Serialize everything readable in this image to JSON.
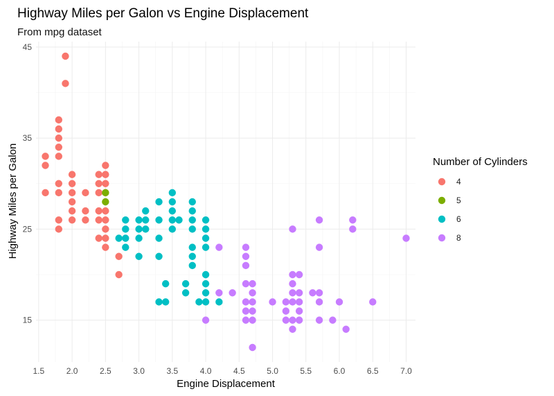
{
  "chart_data": {
    "type": "scatter",
    "title": "Highway Miles per Galon vs Engine Displacement",
    "subtitle": "From mpg dataset",
    "xlabel": "Engine Displacement",
    "ylabel": "Highway Miles per Galon",
    "xlim": [
      1.46,
      7.14
    ],
    "ylim": [
      10.4,
      45.6
    ],
    "x_ticks": [
      "1.5",
      "2.0",
      "2.5",
      "3.0",
      "3.5",
      "4.0",
      "4.5",
      "5.0",
      "5.5",
      "6.0",
      "6.5",
      "7.0"
    ],
    "y_ticks": [
      "15",
      "25",
      "35",
      "45"
    ],
    "grid": true,
    "legend": {
      "title": "Number of Cylinders",
      "position": "right"
    },
    "series": [
      {
        "name": "4",
        "color": "#F8766D",
        "points": [
          [
            1.6,
            33
          ],
          [
            1.6,
            32
          ],
          [
            1.6,
            29
          ],
          [
            1.8,
            37
          ],
          [
            1.8,
            36
          ],
          [
            1.8,
            35
          ],
          [
            1.8,
            34
          ],
          [
            1.8,
            33
          ],
          [
            1.8,
            30
          ],
          [
            1.8,
            29
          ],
          [
            1.8,
            26
          ],
          [
            1.8,
            25
          ],
          [
            1.9,
            44
          ],
          [
            1.9,
            41
          ],
          [
            2.0,
            31
          ],
          [
            2.0,
            30
          ],
          [
            2.0,
            29
          ],
          [
            2.0,
            28
          ],
          [
            2.0,
            27
          ],
          [
            2.0,
            26
          ],
          [
            2.2,
            29
          ],
          [
            2.2,
            27
          ],
          [
            2.2,
            26
          ],
          [
            2.4,
            31
          ],
          [
            2.4,
            30
          ],
          [
            2.4,
            29
          ],
          [
            2.4,
            27
          ],
          [
            2.4,
            26
          ],
          [
            2.4,
            24
          ],
          [
            2.5,
            32
          ],
          [
            2.5,
            31
          ],
          [
            2.5,
            30
          ],
          [
            2.5,
            29
          ],
          [
            2.5,
            27
          ],
          [
            2.5,
            26
          ],
          [
            2.5,
            25
          ],
          [
            2.5,
            24
          ],
          [
            2.5,
            23
          ],
          [
            2.7,
            22
          ],
          [
            2.7,
            20
          ]
        ]
      },
      {
        "name": "5",
        "color": "#7CAE00",
        "points": [
          [
            2.5,
            29
          ],
          [
            2.5,
            28
          ]
        ]
      },
      {
        "name": "6",
        "color": "#00BFC4",
        "points": [
          [
            2.7,
            24
          ],
          [
            2.8,
            26
          ],
          [
            2.8,
            25
          ],
          [
            2.8,
            24
          ],
          [
            2.8,
            23
          ],
          [
            3.0,
            26
          ],
          [
            3.0,
            25
          ],
          [
            3.0,
            24
          ],
          [
            3.0,
            22
          ],
          [
            3.1,
            27
          ],
          [
            3.1,
            26
          ],
          [
            3.1,
            25
          ],
          [
            3.3,
            28
          ],
          [
            3.3,
            26
          ],
          [
            3.3,
            24
          ],
          [
            3.3,
            22
          ],
          [
            3.3,
            17
          ],
          [
            3.4,
            19
          ],
          [
            3.4,
            17
          ],
          [
            3.5,
            29
          ],
          [
            3.5,
            28
          ],
          [
            3.5,
            27
          ],
          [
            3.5,
            26
          ],
          [
            3.5,
            25
          ],
          [
            3.6,
            26
          ],
          [
            3.7,
            19
          ],
          [
            3.7,
            18
          ],
          [
            3.8,
            28
          ],
          [
            3.8,
            27
          ],
          [
            3.8,
            26
          ],
          [
            3.8,
            25
          ],
          [
            3.8,
            23
          ],
          [
            3.8,
            22
          ],
          [
            3.8,
            21
          ],
          [
            3.9,
            17
          ],
          [
            4.0,
            26
          ],
          [
            4.0,
            25
          ],
          [
            4.0,
            24
          ],
          [
            4.0,
            23
          ],
          [
            4.0,
            20
          ],
          [
            4.0,
            19
          ],
          [
            4.0,
            18
          ],
          [
            4.0,
            17
          ],
          [
            4.2,
            17
          ]
        ]
      },
      {
        "name": "8",
        "color": "#C77CFF",
        "points": [
          [
            4.0,
            15
          ],
          [
            4.2,
            23
          ],
          [
            4.2,
            18
          ],
          [
            4.4,
            18
          ],
          [
            4.6,
            23
          ],
          [
            4.6,
            22
          ],
          [
            4.6,
            21
          ],
          [
            4.6,
            19
          ],
          [
            4.6,
            17
          ],
          [
            4.6,
            16
          ],
          [
            4.6,
            15
          ],
          [
            4.7,
            19
          ],
          [
            4.7,
            18
          ],
          [
            4.7,
            17
          ],
          [
            4.7,
            16
          ],
          [
            4.7,
            15
          ],
          [
            4.7,
            12
          ],
          [
            5.0,
            17
          ],
          [
            5.2,
            17
          ],
          [
            5.2,
            16
          ],
          [
            5.2,
            15
          ],
          [
            5.3,
            25
          ],
          [
            5.3,
            20
          ],
          [
            5.3,
            19
          ],
          [
            5.3,
            18
          ],
          [
            5.3,
            17
          ],
          [
            5.3,
            15
          ],
          [
            5.3,
            14
          ],
          [
            5.4,
            20
          ],
          [
            5.4,
            18
          ],
          [
            5.4,
            17
          ],
          [
            5.4,
            16
          ],
          [
            5.4,
            15
          ],
          [
            5.6,
            18
          ],
          [
            5.7,
            26
          ],
          [
            5.7,
            23
          ],
          [
            5.7,
            18
          ],
          [
            5.7,
            17
          ],
          [
            5.7,
            15
          ],
          [
            5.9,
            15
          ],
          [
            6.0,
            17
          ],
          [
            6.1,
            14
          ],
          [
            6.2,
            26
          ],
          [
            6.2,
            25
          ],
          [
            6.5,
            17
          ],
          [
            7.0,
            24
          ]
        ]
      }
    ]
  }
}
